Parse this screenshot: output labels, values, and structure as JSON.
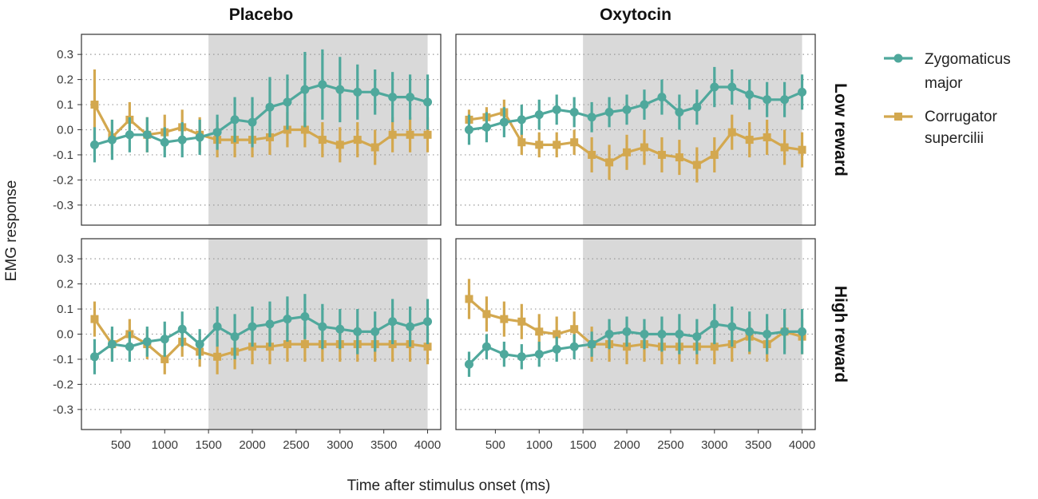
{
  "chart_data": {
    "type": "line",
    "facet_columns": [
      "Placebo",
      "Oxytocin"
    ],
    "facet_rows": [
      "Low reward",
      "High reward"
    ],
    "xlabel": "Time after stimulus onset (ms)",
    "ylabel": "EMG response",
    "xlim": [
      50,
      4150
    ],
    "ylim": [
      -0.38,
      0.38
    ],
    "x_ticks": [
      500,
      1000,
      1500,
      2000,
      2500,
      3000,
      3500,
      4000
    ],
    "y_ticks": [
      0.3,
      0.2,
      0.1,
      0.0,
      -0.1,
      -0.2,
      -0.3
    ],
    "y_tick_labels": [
      "0.3",
      "0.2",
      "0.1",
      "0.0",
      "-0.1",
      "-0.2",
      "-0.3"
    ],
    "shaded_region": [
      1500,
      4000
    ],
    "grid": "horizontal dotted",
    "legend_position": "right",
    "x": [
      200,
      400,
      600,
      800,
      1000,
      1200,
      1400,
      1600,
      1800,
      2000,
      2200,
      2400,
      2600,
      2800,
      3000,
      3200,
      3400,
      3600,
      3800,
      4000
    ],
    "series": [
      {
        "name": "Zygomaticus major",
        "legend_lines": [
          "Zygomaticus",
          "major"
        ],
        "color": "#4fa89c",
        "marker": "circle",
        "panels": [
          {
            "values": [
              -0.06,
              -0.04,
              -0.02,
              -0.02,
              -0.05,
              -0.04,
              -0.03,
              -0.01,
              0.04,
              0.03,
              0.09,
              0.11,
              0.16,
              0.18,
              0.16,
              0.15,
              0.15,
              0.13,
              0.13,
              0.11
            ],
            "errors": [
              0.07,
              0.08,
              0.07,
              0.07,
              0.06,
              0.07,
              0.07,
              0.07,
              0.09,
              0.1,
              0.12,
              0.11,
              0.15,
              0.14,
              0.13,
              0.11,
              0.09,
              0.1,
              0.09,
              0.11
            ]
          },
          {
            "values": [
              0.0,
              0.01,
              0.03,
              0.04,
              0.06,
              0.08,
              0.07,
              0.05,
              0.07,
              0.08,
              0.1,
              0.13,
              0.07,
              0.09,
              0.17,
              0.17,
              0.14,
              0.12,
              0.12,
              0.15
            ],
            "errors": [
              0.06,
              0.06,
              0.06,
              0.06,
              0.06,
              0.06,
              0.06,
              0.06,
              0.06,
              0.06,
              0.06,
              0.07,
              0.07,
              0.07,
              0.08,
              0.07,
              0.06,
              0.07,
              0.07,
              0.07
            ]
          },
          {
            "values": [
              -0.09,
              -0.04,
              -0.05,
              -0.03,
              -0.02,
              0.02,
              -0.04,
              0.03,
              -0.01,
              0.03,
              0.04,
              0.06,
              0.07,
              0.03,
              0.02,
              0.01,
              0.01,
              0.05,
              0.03,
              0.05
            ],
            "errors": [
              0.07,
              0.07,
              0.06,
              0.06,
              0.07,
              0.07,
              0.06,
              0.08,
              0.09,
              0.08,
              0.09,
              0.09,
              0.09,
              0.09,
              0.08,
              0.09,
              0.08,
              0.09,
              0.08,
              0.09
            ]
          },
          {
            "values": [
              -0.12,
              -0.05,
              -0.08,
              -0.09,
              -0.08,
              -0.06,
              -0.05,
              -0.04,
              0.0,
              0.01,
              0.0,
              0.0,
              0.0,
              -0.01,
              0.04,
              0.03,
              0.01,
              0.0,
              0.01,
              0.01
            ],
            "errors": [
              0.05,
              0.05,
              0.05,
              0.05,
              0.05,
              0.05,
              0.05,
              0.05,
              0.06,
              0.06,
              0.06,
              0.07,
              0.08,
              0.07,
              0.08,
              0.08,
              0.08,
              0.08,
              0.09,
              0.09
            ]
          }
        ]
      },
      {
        "name": "Corrugator supercilii",
        "legend_lines": [
          "Corrugator",
          "supercilii"
        ],
        "color": "#d3a84f",
        "marker": "square",
        "panels": [
          {
            "values": [
              0.1,
              -0.03,
              0.04,
              -0.02,
              -0.01,
              0.01,
              -0.02,
              -0.04,
              -0.04,
              -0.04,
              -0.03,
              0.0,
              0.0,
              -0.04,
              -0.06,
              -0.04,
              -0.07,
              -0.02,
              -0.02,
              -0.02
            ],
            "errors": [
              0.14,
              0.07,
              0.07,
              0.07,
              0.07,
              0.07,
              0.07,
              0.07,
              0.07,
              0.07,
              0.07,
              0.07,
              0.07,
              0.07,
              0.07,
              0.07,
              0.07,
              0.07,
              0.07,
              0.07
            ]
          },
          {
            "values": [
              0.04,
              0.05,
              0.07,
              -0.05,
              -0.06,
              -0.06,
              -0.05,
              -0.1,
              -0.13,
              -0.09,
              -0.07,
              -0.1,
              -0.11,
              -0.14,
              -0.1,
              -0.01,
              -0.04,
              -0.03,
              -0.07,
              -0.08
            ],
            "errors": [
              0.04,
              0.04,
              0.05,
              0.05,
              0.05,
              0.05,
              0.05,
              0.07,
              0.07,
              0.07,
              0.07,
              0.07,
              0.07,
              0.07,
              0.07,
              0.07,
              0.07,
              0.07,
              0.07,
              0.07
            ]
          },
          {
            "values": [
              0.06,
              -0.04,
              0.0,
              -0.04,
              -0.1,
              -0.03,
              -0.07,
              -0.09,
              -0.07,
              -0.05,
              -0.05,
              -0.04,
              -0.04,
              -0.04,
              -0.04,
              -0.04,
              -0.04,
              -0.04,
              -0.04,
              -0.05
            ],
            "errors": [
              0.07,
              0.06,
              0.06,
              0.06,
              0.06,
              0.06,
              0.06,
              0.07,
              0.07,
              0.07,
              0.07,
              0.07,
              0.07,
              0.07,
              0.07,
              0.07,
              0.07,
              0.07,
              0.07,
              0.07
            ]
          },
          {
            "values": [
              0.14,
              0.08,
              0.06,
              0.05,
              0.01,
              0.0,
              0.02,
              -0.04,
              -0.04,
              -0.05,
              -0.04,
              -0.05,
              -0.05,
              -0.05,
              -0.05,
              -0.04,
              -0.01,
              -0.04,
              0.01,
              -0.01
            ],
            "errors": [
              0.08,
              0.07,
              0.07,
              0.07,
              0.07,
              0.07,
              0.07,
              0.07,
              0.07,
              0.07,
              0.07,
              0.07,
              0.07,
              0.07,
              0.07,
              0.07,
              0.07,
              0.07,
              0.07,
              0.07
            ]
          }
        ]
      }
    ]
  }
}
